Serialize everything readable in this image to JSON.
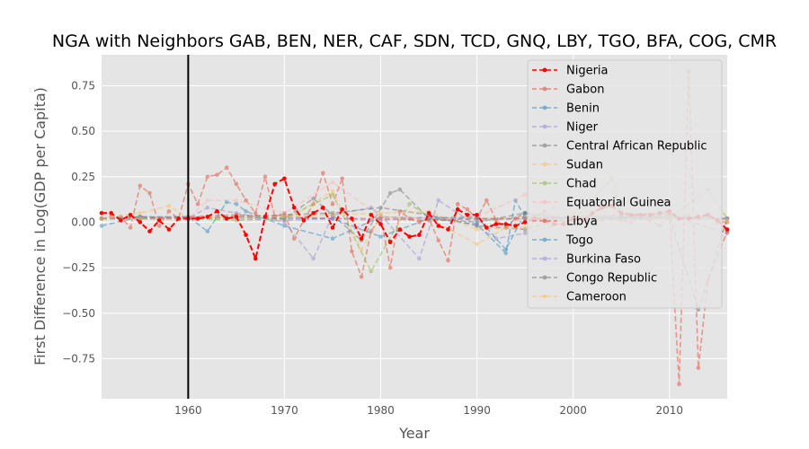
{
  "chart_data": {
    "type": "line",
    "title": "NGA with Neighbors GAB, BEN, NER, CAF, SDN, TCD, GNQ, LBY, TGO, BFA, COG, CMR",
    "xlabel": "Year",
    "ylabel": "First Difference in Log(GDP per Capita)",
    "xlim": [
      1951,
      2016
    ],
    "ylim": [
      -0.97,
      0.92
    ],
    "x_ticks": [
      1960,
      1970,
      1980,
      1990,
      2000,
      2010
    ],
    "y_ticks": [
      -0.75,
      -0.5,
      -0.25,
      0.0,
      0.25,
      0.5,
      0.75
    ],
    "y_tick_labels": [
      "−0.75",
      "−0.50",
      "−0.25",
      "0.00",
      "0.25",
      "0.50",
      "0.75"
    ],
    "vertical_marker_x": 1960,
    "grid": true,
    "legend_position": "top-right",
    "background_color": "#e5e5e5",
    "series": [
      {
        "name": "Nigeria",
        "color": "#ff0000",
        "opacity": 1.0,
        "x": [
          1951,
          1952,
          1953,
          1954,
          1955,
          1956,
          1957,
          1958,
          1959,
          1960,
          1961,
          1962,
          1963,
          1964,
          1965,
          1966,
          1967,
          1968,
          1969,
          1970,
          1971,
          1972,
          1973,
          1974,
          1975,
          1976,
          1977,
          1978,
          1979,
          1980,
          1981,
          1982,
          1983,
          1984,
          1985,
          1986,
          1987,
          1988,
          1989,
          1990,
          1991,
          1992,
          1993,
          1994,
          1995,
          1996,
          1997,
          1998,
          1999,
          2000,
          2001,
          2002,
          2003,
          2004,
          2005,
          2006,
          2007,
          2008,
          2009,
          2010,
          2011,
          2012,
          2013,
          2014,
          2015,
          2016
        ],
        "y": [
          0.05,
          0.05,
          0.01,
          0.04,
          0.0,
          -0.05,
          0.01,
          -0.04,
          0.02,
          0.02,
          0.02,
          0.03,
          0.06,
          0.02,
          0.03,
          -0.07,
          -0.2,
          0.03,
          0.21,
          0.24,
          0.08,
          0.01,
          0.05,
          0.08,
          -0.03,
          0.07,
          0.02,
          -0.09,
          0.04,
          -0.01,
          -0.11,
          -0.04,
          -0.08,
          -0.07,
          0.05,
          -0.02,
          -0.04,
          0.07,
          0.04,
          0.04,
          -0.03,
          -0.01,
          -0.01,
          -0.02,
          0.0,
          0.02,
          0.01,
          -0.01,
          -0.01,
          0.02,
          0.01,
          0.05,
          0.08,
          0.09,
          0.05,
          0.04,
          0.04,
          0.04,
          0.05,
          0.06,
          0.02,
          0.02,
          0.03,
          0.04,
          0.01,
          -0.04
        ]
      },
      {
        "name": "Gabon",
        "color": "#e24a33",
        "opacity": 0.5,
        "x": [
          1951,
          1952,
          1953,
          1954,
          1955,
          1956,
          1957,
          1958,
          1959,
          1960,
          1961,
          1962,
          1963,
          1964,
          1965,
          1966,
          1967,
          1968,
          1969,
          1970,
          1971,
          1972,
          1973,
          1974,
          1975,
          1976,
          1977,
          1978,
          1979,
          1980,
          1981,
          1982,
          1983,
          1984,
          1985,
          1986,
          1987,
          1988,
          1989,
          1990,
          1991,
          1992,
          1993,
          1994,
          1995,
          1996,
          1997,
          1998,
          1999,
          2000,
          2001,
          2002,
          2003,
          2004,
          2005,
          2006,
          2007,
          2008,
          2009,
          2010,
          2011,
          2012,
          2013,
          2014,
          2015,
          2016
        ],
        "y": [
          0.02,
          0.03,
          0.03,
          -0.03,
          0.2,
          0.16,
          -0.02,
          0.06,
          0.02,
          0.21,
          0.1,
          0.25,
          0.26,
          0.3,
          0.21,
          0.12,
          0.05,
          0.25,
          0.03,
          0.05,
          -0.09,
          0.01,
          0.1,
          0.27,
          0.1,
          0.24,
          -0.16,
          -0.3,
          -0.05,
          0.03,
          -0.25,
          0.06,
          0.02,
          0.0,
          0.02,
          -0.1,
          -0.21,
          0.1,
          0.07,
          0.02,
          0.12,
          0.01,
          -0.03,
          0.02,
          0.05,
          0.03,
          0.06,
          0.02,
          0.0,
          0.01,
          0.01,
          0.02,
          0.01,
          0.02,
          0.01,
          0.0,
          0.02,
          0.01,
          -0.02,
          0.05,
          0.02,
          0.03,
          0.02,
          0.04,
          0.0,
          0.0
        ]
      },
      {
        "name": "Benin",
        "color": "#348abd",
        "opacity": 0.5,
        "x": [
          1951,
          1955,
          1960,
          1962,
          1964,
          1965,
          1966,
          1970,
          1975,
          1980,
          1985,
          1990,
          1993,
          1994,
          1995,
          2000,
          2005,
          2010,
          2016
        ],
        "y": [
          -0.02,
          0.03,
          0.03,
          -0.05,
          0.11,
          0.1,
          0.06,
          -0.02,
          -0.09,
          0.03,
          0.02,
          -0.01,
          -0.17,
          0.12,
          0.03,
          0.02,
          0.03,
          0.03,
          0.02
        ]
      },
      {
        "name": "Niger",
        "color": "#988ed5",
        "opacity": 0.5,
        "x": [
          1951,
          1955,
          1960,
          1962,
          1965,
          1970,
          1973,
          1975,
          1979,
          1980,
          1984,
          1986,
          1990,
          1992,
          1995,
          2000,
          2005,
          2010,
          2016
        ],
        "y": [
          0.02,
          0.03,
          0.02,
          0.08,
          0.05,
          0.0,
          -0.2,
          0.04,
          0.08,
          0.04,
          -0.2,
          0.12,
          -0.02,
          -0.09,
          -0.06,
          0.01,
          0.03,
          0.03,
          0.02
        ]
      },
      {
        "name": "Central African Republic",
        "color": "#777777",
        "opacity": 0.5,
        "x": [
          1951,
          1955,
          1960,
          1965,
          1970,
          1973,
          1975,
          1978,
          1981,
          1982,
          1985,
          1990,
          1995,
          2000,
          2005,
          2010,
          2013,
          2016
        ],
        "y": [
          0.02,
          0.03,
          0.02,
          0.03,
          0.02,
          0.13,
          0.04,
          -0.1,
          0.16,
          0.18,
          0.02,
          0.0,
          0.05,
          0.02,
          0.02,
          0.03,
          -0.48,
          0.02
        ]
      },
      {
        "name": "Sudan",
        "color": "#fbc15e",
        "opacity": 0.5,
        "x": [
          1951,
          1955,
          1958,
          1960,
          1965,
          1970,
          1975,
          1978,
          1980,
          1985,
          1990,
          1995,
          2000,
          2005,
          2010,
          2016
        ],
        "y": [
          0.02,
          0.05,
          0.09,
          0.02,
          0.03,
          0.01,
          0.17,
          -0.15,
          0.03,
          0.02,
          -0.12,
          0.03,
          0.05,
          0.06,
          0.03,
          0.02
        ]
      },
      {
        "name": "Chad",
        "color": "#8eba42",
        "opacity": 0.5,
        "x": [
          1951,
          1955,
          1960,
          1965,
          1970,
          1975,
          1979,
          1983,
          1985,
          1990,
          1995,
          2000,
          2004,
          2005,
          2010,
          2014,
          2016
        ],
        "y": [
          0.02,
          0.02,
          0.02,
          0.01,
          0.02,
          0.15,
          -0.27,
          0.1,
          0.03,
          0.02,
          0.02,
          0.01,
          0.24,
          0.05,
          0.02,
          0.18,
          0.02
        ]
      },
      {
        "name": "Equatorial Guinea",
        "color": "#ffb5b8",
        "opacity": 0.5,
        "x": [
          1951,
          1955,
          1960,
          1962,
          1965,
          1970,
          1975,
          1980,
          1985,
          1990,
          1995,
          1998,
          2000,
          2005,
          2010,
          2012,
          2014,
          2016
        ],
        "y": [
          0.02,
          0.02,
          0.02,
          0.12,
          0.12,
          0.05,
          0.22,
          0.03,
          0.02,
          0.03,
          0.15,
          0.08,
          0.05,
          0.05,
          0.03,
          0.05,
          0.04,
          0.02
        ]
      },
      {
        "name": "Libya",
        "color": "#e24a33",
        "opacity": 0.5,
        "x": [
          1951,
          1955,
          1960,
          1965,
          1970,
          1975,
          1980,
          1985,
          1990,
          1995,
          2000,
          2005,
          2010,
          2011,
          2012,
          2013,
          2014,
          2016
        ],
        "y": [
          0.02,
          0.02,
          0.03,
          0.04,
          0.03,
          0.02,
          0.02,
          0.01,
          0.02,
          0.02,
          0.03,
          0.04,
          0.05,
          -0.89,
          0.83,
          -0.8,
          -0.32,
          -0.05
        ]
      },
      {
        "name": "Togo",
        "color": "#348abd",
        "opacity": 0.5,
        "x": [
          1951,
          1955,
          1960,
          1965,
          1970,
          1975,
          1980,
          1985,
          1990,
          1993,
          1995,
          2000,
          2005,
          2010,
          2016
        ],
        "y": [
          0.02,
          0.02,
          0.02,
          0.03,
          0.02,
          0.02,
          -0.08,
          0.02,
          0.03,
          -0.15,
          0.05,
          0.01,
          0.02,
          0.02,
          0.02
        ]
      },
      {
        "name": "Burkina Faso",
        "color": "#988ed5",
        "opacity": 0.5,
        "x": [
          1951,
          1955,
          1960,
          1965,
          1970,
          1975,
          1980,
          1985,
          1990,
          1995,
          2000,
          2005,
          2010,
          2016
        ],
        "y": [
          0.02,
          0.02,
          0.02,
          0.02,
          0.01,
          0.02,
          0.01,
          0.03,
          0.01,
          0.02,
          0.02,
          0.02,
          0.02,
          0.02
        ]
      },
      {
        "name": "Congo Republic",
        "color": "#777777",
        "opacity": 0.5,
        "x": [
          1951,
          1955,
          1960,
          1965,
          1970,
          1975,
          1980,
          1985,
          1990,
          1995,
          2000,
          2005,
          2010,
          2016
        ],
        "y": [
          0.02,
          0.02,
          0.02,
          0.03,
          0.04,
          0.05,
          0.08,
          0.04,
          -0.02,
          -0.04,
          0.03,
          0.03,
          0.04,
          -0.06
        ]
      },
      {
        "name": "Cameroon",
        "color": "#fbc15e",
        "opacity": 0.5,
        "x": [
          1951,
          1955,
          1960,
          1965,
          1970,
          1975,
          1980,
          1985,
          1990,
          1995,
          2000,
          2005,
          2010,
          2016
        ],
        "y": [
          0.02,
          0.02,
          0.02,
          0.03,
          0.03,
          0.04,
          0.05,
          0.06,
          -0.04,
          -0.03,
          0.02,
          0.01,
          0.02,
          0.01
        ]
      }
    ]
  }
}
